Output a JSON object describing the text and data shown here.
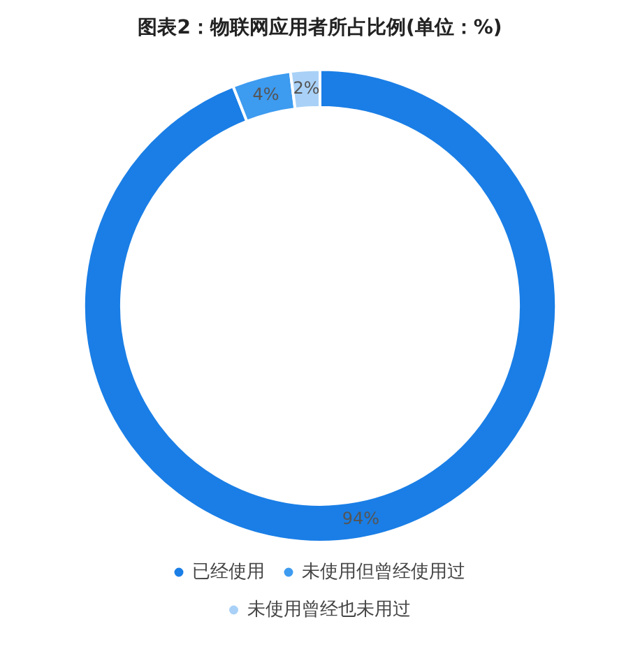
{
  "chart_data": {
    "type": "donut",
    "title": "图表2：物联网应用者所占比例(单位：%)",
    "categories": [
      "已经使用",
      "未使用但曾经使用过",
      "未使用曾经也未用过"
    ],
    "values": [
      94,
      4,
      2
    ],
    "colors": [
      "#1a7ee6",
      "#3d9bf0",
      "#a9d1f7"
    ],
    "value_labels": [
      "94%",
      "4%",
      "2%"
    ],
    "legend": "bottom"
  }
}
